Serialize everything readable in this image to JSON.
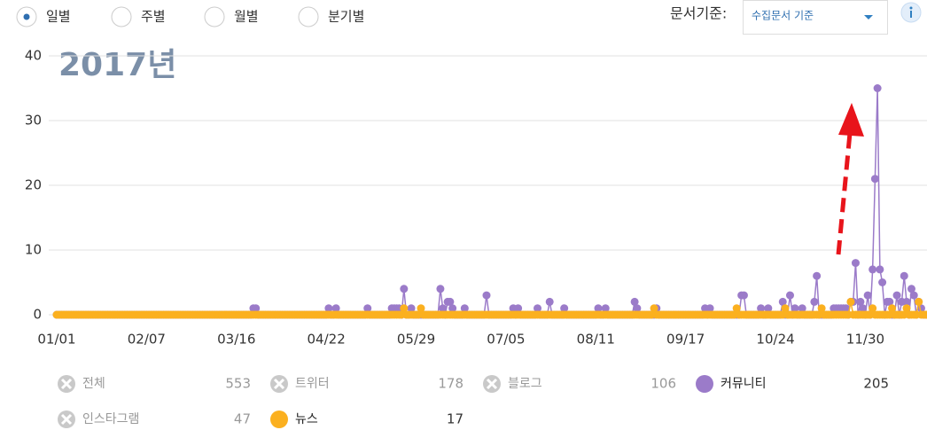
{
  "period_options": [
    "일별",
    "주별",
    "월별",
    "분기별"
  ],
  "selected_period": 0,
  "document_basis": {
    "label": "문서기준:",
    "value": "수집문서 기준"
  },
  "chart_data": {
    "type": "line",
    "annotation": "2017년",
    "ylim": [
      0,
      40
    ],
    "yticks": [
      0,
      10,
      20,
      30,
      40
    ],
    "grid": true,
    "categories": [
      "01/01",
      null,
      null,
      null,
      null,
      null,
      null,
      null,
      null,
      null,
      null,
      null,
      null,
      null,
      null,
      null,
      null,
      null,
      null,
      null,
      null,
      null,
      null,
      null,
      null,
      null,
      null,
      null,
      null,
      null,
      null,
      null,
      null,
      null,
      null,
      null,
      null,
      "02/07",
      null,
      null,
      null,
      null,
      null,
      null,
      null,
      null,
      null,
      null,
      null,
      null,
      null,
      null,
      null,
      null,
      null,
      null,
      null,
      null,
      null,
      null,
      null,
      null,
      null,
      null,
      null,
      null,
      null,
      null,
      null,
      null,
      null,
      null,
      null,
      null,
      "03/16",
      null,
      null,
      null,
      null,
      null,
      null,
      null,
      null,
      null,
      null,
      null,
      null,
      null,
      null,
      null,
      null,
      null,
      null,
      null,
      null,
      null,
      null,
      null,
      null,
      null,
      null,
      null,
      null,
      null,
      null,
      null,
      null,
      null,
      null,
      null,
      null,
      "04/22",
      null,
      null,
      null,
      null,
      null,
      null,
      null,
      null,
      null,
      null,
      null,
      null,
      null,
      null,
      null,
      null,
      null,
      null,
      null,
      null,
      null,
      null,
      null,
      null,
      null,
      null,
      null,
      null,
      null,
      null,
      null,
      null,
      null,
      null,
      null,
      null,
      "05/29",
      null,
      null,
      null,
      null,
      null,
      null,
      null,
      null,
      null,
      null,
      null,
      null,
      null,
      null,
      null,
      null,
      null,
      null,
      null,
      null,
      null,
      null,
      null,
      null,
      null,
      null,
      null,
      null,
      null,
      null,
      null,
      null,
      null,
      null,
      null,
      null,
      "07/05",
      null,
      null,
      null,
      null,
      null,
      null,
      null,
      null,
      null,
      null,
      null,
      null,
      null,
      null,
      null,
      null,
      null,
      null,
      null,
      null,
      null,
      null,
      null,
      null,
      null,
      null,
      null,
      null,
      null,
      null,
      null,
      null,
      null,
      null,
      null,
      null,
      "08/11",
      null,
      null,
      null,
      null,
      null,
      null,
      null,
      null,
      null,
      null,
      null,
      null,
      null,
      null,
      null,
      null,
      null,
      null,
      null,
      null,
      null,
      null,
      null,
      null,
      null,
      null,
      null,
      null,
      null,
      null,
      null,
      null,
      null,
      null,
      null,
      null,
      "09/17",
      null,
      null,
      null,
      null,
      null,
      null,
      null,
      null,
      null,
      null,
      null,
      null,
      null,
      null,
      null,
      null,
      null,
      null,
      null,
      null,
      null,
      null,
      null,
      null,
      null,
      null,
      null,
      null,
      null,
      null,
      null,
      null,
      null,
      null,
      null,
      null,
      "10/24",
      null,
      null,
      null,
      null,
      null,
      null,
      null,
      null,
      null,
      null,
      null,
      null,
      null,
      null,
      null,
      null,
      null,
      null,
      null,
      null,
      null,
      null,
      null,
      null,
      null,
      null,
      null,
      null,
      null,
      null,
      null,
      null,
      null,
      null,
      null,
      null,
      "11/30",
      null,
      null,
      null,
      null,
      null,
      null,
      null,
      null,
      null,
      null,
      null,
      null,
      null,
      null,
      null,
      null,
      null,
      null,
      null,
      null,
      null,
      null,
      null,
      null,
      null
    ],
    "series": [
      {
        "name": "전체",
        "total": 553,
        "active": false
      },
      {
        "name": "트위터",
        "total": 178,
        "active": false
      },
      {
        "name": "블로그",
        "total": 106,
        "active": false
      },
      {
        "name": "커뮤니티",
        "total": 205,
        "active": true,
        "color": "#9b7bc9",
        "values": [
          0,
          0,
          0,
          0,
          0,
          0,
          0,
          0,
          0,
          0,
          0,
          0,
          0,
          0,
          0,
          0,
          0,
          0,
          0,
          0,
          0,
          0,
          0,
          0,
          0,
          0,
          0,
          0,
          0,
          0,
          0,
          0,
          0,
          0,
          0,
          0,
          0,
          0,
          0,
          0,
          0,
          0,
          0,
          0,
          0,
          0,
          0,
          0,
          0,
          0,
          0,
          0,
          0,
          0,
          0,
          0,
          0,
          0,
          0,
          0,
          0,
          0,
          0,
          0,
          0,
          0,
          0,
          0,
          0,
          0,
          0,
          0,
          0,
          0,
          0,
          0,
          0,
          0,
          0,
          0,
          0,
          1,
          1,
          0,
          0,
          0,
          0,
          0,
          0,
          0,
          0,
          0,
          0,
          0,
          0,
          0,
          0,
          0,
          0,
          0,
          0,
          0,
          0,
          0,
          0,
          0,
          0,
          0,
          0,
          0,
          0,
          0,
          1,
          0,
          0,
          1,
          0,
          0,
          0,
          0,
          0,
          0,
          0,
          0,
          0,
          0,
          0,
          0,
          1,
          0,
          0,
          0,
          0,
          0,
          0,
          0,
          0,
          0,
          1,
          1,
          1,
          1,
          0,
          4,
          0,
          0,
          1,
          0,
          0,
          0,
          0,
          0,
          0,
          0,
          0,
          0,
          0,
          0,
          4,
          1,
          0,
          2,
          2,
          1,
          0,
          0,
          0,
          0,
          1,
          0,
          0,
          0,
          0,
          0,
          0,
          0,
          0,
          3,
          0,
          0,
          0,
          0,
          0,
          0,
          0,
          0,
          0,
          0,
          1,
          0,
          1,
          0,
          0,
          0,
          0,
          0,
          0,
          0,
          1,
          0,
          0,
          0,
          0,
          2,
          0,
          0,
          0,
          0,
          0,
          1,
          0,
          0,
          0,
          0,
          0,
          0,
          0,
          0,
          0,
          0,
          0,
          0,
          0,
          1,
          0,
          0,
          1,
          0,
          0,
          0,
          0,
          0,
          0,
          0,
          0,
          0,
          0,
          0,
          2,
          1,
          0,
          0,
          0,
          0,
          0,
          0,
          0,
          1,
          0,
          0,
          0,
          0,
          0,
          0,
          0,
          0,
          0,
          0,
          0,
          0,
          0,
          0,
          0,
          0,
          0,
          0,
          0,
          1,
          0,
          1,
          0,
          0,
          0,
          0,
          0,
          0,
          0,
          0,
          0,
          0,
          0,
          0,
          3,
          3,
          0,
          0,
          0,
          0,
          0,
          0,
          1,
          0,
          0,
          1,
          0,
          0,
          0,
          0,
          0,
          2,
          0,
          0,
          3,
          0,
          1,
          0,
          0,
          1,
          0,
          0,
          0,
          0,
          2,
          6,
          0,
          0,
          0,
          0,
          0,
          0,
          1,
          1,
          1,
          1,
          1,
          1,
          0,
          2,
          2,
          8,
          0,
          2,
          1,
          0,
          3,
          0,
          7,
          21,
          35,
          7,
          5,
          0,
          2,
          2,
          0,
          0,
          3,
          0,
          2,
          6,
          2,
          0,
          4,
          3,
          0,
          2,
          1,
          0,
          0
        ]
      },
      {
        "name": "인스타그램",
        "total": 47,
        "active": false
      },
      {
        "name": "뉴스",
        "total": 17,
        "active": true,
        "color": "#fbb01f",
        "values": [
          0,
          0,
          0,
          0,
          0,
          0,
          0,
          0,
          0,
          0,
          0,
          0,
          0,
          0,
          0,
          0,
          0,
          0,
          0,
          0,
          0,
          0,
          0,
          0,
          0,
          0,
          0,
          0,
          0,
          0,
          0,
          0,
          0,
          0,
          0,
          0,
          0,
          0,
          0,
          0,
          0,
          0,
          0,
          0,
          0,
          0,
          0,
          0,
          0,
          0,
          0,
          0,
          0,
          0,
          0,
          0,
          0,
          0,
          0,
          0,
          0,
          0,
          0,
          0,
          0,
          0,
          0,
          0,
          0,
          0,
          0,
          0,
          0,
          0,
          0,
          0,
          0,
          0,
          0,
          0,
          0,
          0,
          0,
          0,
          0,
          0,
          0,
          0,
          0,
          0,
          0,
          0,
          0,
          0,
          0,
          0,
          0,
          0,
          0,
          0,
          0,
          0,
          0,
          0,
          0,
          0,
          0,
          0,
          0,
          0,
          0,
          0,
          0,
          0,
          0,
          0,
          0,
          0,
          0,
          0,
          0,
          0,
          0,
          0,
          0,
          0,
          0,
          0,
          0,
          0,
          0,
          0,
          0,
          0,
          0,
          0,
          0,
          0,
          0,
          0,
          0,
          0,
          0,
          1,
          0,
          0,
          0,
          0,
          0,
          0,
          1,
          0,
          0,
          0,
          0,
          0,
          0,
          0,
          0,
          0,
          0,
          0,
          0,
          0,
          0,
          0,
          0,
          0,
          0,
          0,
          0,
          0,
          0,
          0,
          0,
          0,
          0,
          0,
          0,
          0,
          0,
          0,
          0,
          0,
          0,
          0,
          0,
          0,
          0,
          0,
          0,
          0,
          0,
          0,
          0,
          0,
          0,
          0,
          0,
          0,
          0,
          0,
          0,
          0,
          0,
          0,
          0,
          0,
          0,
          0,
          0,
          0,
          0,
          0,
          0,
          0,
          0,
          0,
          0,
          0,
          0,
          0,
          0,
          0,
          0,
          0,
          0,
          0,
          0,
          0,
          0,
          0,
          0,
          0,
          0,
          0,
          0,
          0,
          0,
          0,
          0,
          0,
          0,
          0,
          0,
          0,
          1,
          0,
          0,
          0,
          0,
          0,
          0,
          0,
          0,
          0,
          0,
          0,
          0,
          0,
          0,
          0,
          0,
          0,
          0,
          0,
          0,
          0,
          0,
          0,
          0,
          0,
          0,
          0,
          0,
          0,
          0,
          0,
          0,
          0,
          1,
          0,
          0,
          0,
          0,
          0,
          0,
          0,
          0,
          0,
          0,
          0,
          0,
          0,
          0,
          0,
          0,
          0,
          0,
          0,
          1,
          0,
          0,
          0,
          0,
          0,
          0,
          0,
          0,
          0,
          0,
          0,
          0,
          0,
          0,
          1,
          0,
          0,
          0,
          0,
          0,
          0,
          0,
          0,
          0,
          0,
          0,
          2,
          0,
          0,
          0,
          0,
          0,
          0,
          0,
          0,
          1,
          0,
          0,
          0,
          0,
          0,
          0,
          0,
          1,
          0,
          0,
          0,
          0,
          0,
          1,
          0,
          0,
          0,
          0,
          2,
          0,
          0,
          0
        ]
      }
    ]
  }
}
